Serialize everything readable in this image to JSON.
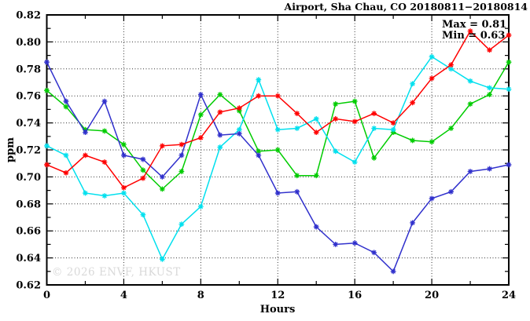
{
  "chart_data": {
    "type": "line",
    "title": "Airport, Sha Chau, CO 20180811−20180814",
    "xlabel": "Hours",
    "ylabel": "ppm",
    "xlim": [
      0,
      24
    ],
    "ylim": [
      0.62,
      0.82
    ],
    "x_tick_labels": [
      0,
      4,
      8,
      12,
      16,
      20,
      24
    ],
    "x_minor_step": 2,
    "y_tick_step": 0.02,
    "y_minor_step": 0.01,
    "grid": {
      "style": "dotted",
      "x_at": [
        4,
        8,
        12,
        16,
        20
      ],
      "y_at": [
        0.64,
        0.66,
        0.68,
        0.7,
        0.72,
        0.74,
        0.76,
        0.78,
        0.8
      ]
    },
    "annotations": {
      "max_label": "Max = 0.81",
      "min_label": "Min = 0.63"
    },
    "watermark": "© 2026 ENVF, HKUST",
    "x": [
      0,
      1,
      2,
      3,
      4,
      5,
      6,
      7,
      8,
      9,
      10,
      11,
      12,
      13,
      14,
      15,
      16,
      17,
      18,
      19,
      20,
      21,
      22,
      23,
      24
    ],
    "series": [
      {
        "name": "green",
        "color": "#00cc00",
        "values": [
          0.764,
          0.752,
          0.735,
          0.734,
          0.724,
          0.705,
          0.691,
          0.704,
          0.746,
          0.761,
          0.749,
          0.719,
          0.72,
          0.701,
          0.701,
          0.754,
          0.756,
          0.714,
          0.733,
          0.727,
          0.726,
          0.736,
          0.754,
          0.761,
          0.785
        ]
      },
      {
        "name": "cyan",
        "color": "#00e0ee",
        "values": [
          0.723,
          0.716,
          0.688,
          0.686,
          0.688,
          0.672,
          0.639,
          0.665,
          0.678,
          0.722,
          0.735,
          0.772,
          0.735,
          0.736,
          0.743,
          0.719,
          0.711,
          0.736,
          0.735,
          0.769,
          0.789,
          0.78,
          0.771,
          0.766,
          0.765
        ]
      },
      {
        "name": "blue",
        "color": "#3030cc",
        "values": [
          0.785,
          0.756,
          0.733,
          0.756,
          0.716,
          0.713,
          0.7,
          0.716,
          0.761,
          0.731,
          0.732,
          0.716,
          0.688,
          0.689,
          0.663,
          0.65,
          0.651,
          0.644,
          0.63,
          0.666,
          0.684,
          0.689,
          0.704,
          0.706,
          0.709
        ]
      },
      {
        "name": "red",
        "color": "#ff0000",
        "values": [
          0.709,
          0.703,
          0.716,
          0.711,
          0.692,
          0.699,
          0.723,
          0.724,
          0.729,
          0.748,
          0.751,
          0.76,
          0.76,
          0.747,
          0.733,
          0.743,
          0.741,
          0.747,
          0.74,
          0.755,
          0.773,
          0.783,
          0.808,
          0.794,
          0.805
        ]
      }
    ]
  }
}
